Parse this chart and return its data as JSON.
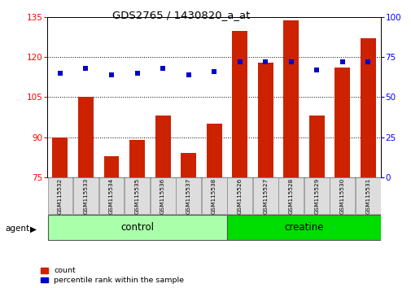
{
  "title": "GDS2765 / 1430820_a_at",
  "samples": [
    "GSM115532",
    "GSM115533",
    "GSM115534",
    "GSM115535",
    "GSM115536",
    "GSM115537",
    "GSM115538",
    "GSM115526",
    "GSM115527",
    "GSM115528",
    "GSM115529",
    "GSM115530",
    "GSM115531"
  ],
  "counts": [
    90,
    105,
    83,
    89,
    98,
    84,
    95,
    130,
    118,
    134,
    98,
    116,
    127
  ],
  "percentile_ranks": [
    65,
    68,
    64,
    65,
    68,
    64,
    66,
    72,
    72,
    72,
    67,
    72,
    72
  ],
  "groups": [
    "control",
    "control",
    "control",
    "control",
    "control",
    "control",
    "control",
    "creatine",
    "creatine",
    "creatine",
    "creatine",
    "creatine",
    "creatine"
  ],
  "bar_color": "#CC2200",
  "dot_color": "#0000CC",
  "ylim_left": [
    75,
    135
  ],
  "yticks_left": [
    75,
    90,
    105,
    120,
    135
  ],
  "ylim_right": [
    0,
    100
  ],
  "yticks_right": [
    0,
    25,
    50,
    75,
    100
  ],
  "ctrl_color": "#AAFFAA",
  "creat_color": "#00DD00",
  "n_control": 7,
  "n_creatine": 6
}
